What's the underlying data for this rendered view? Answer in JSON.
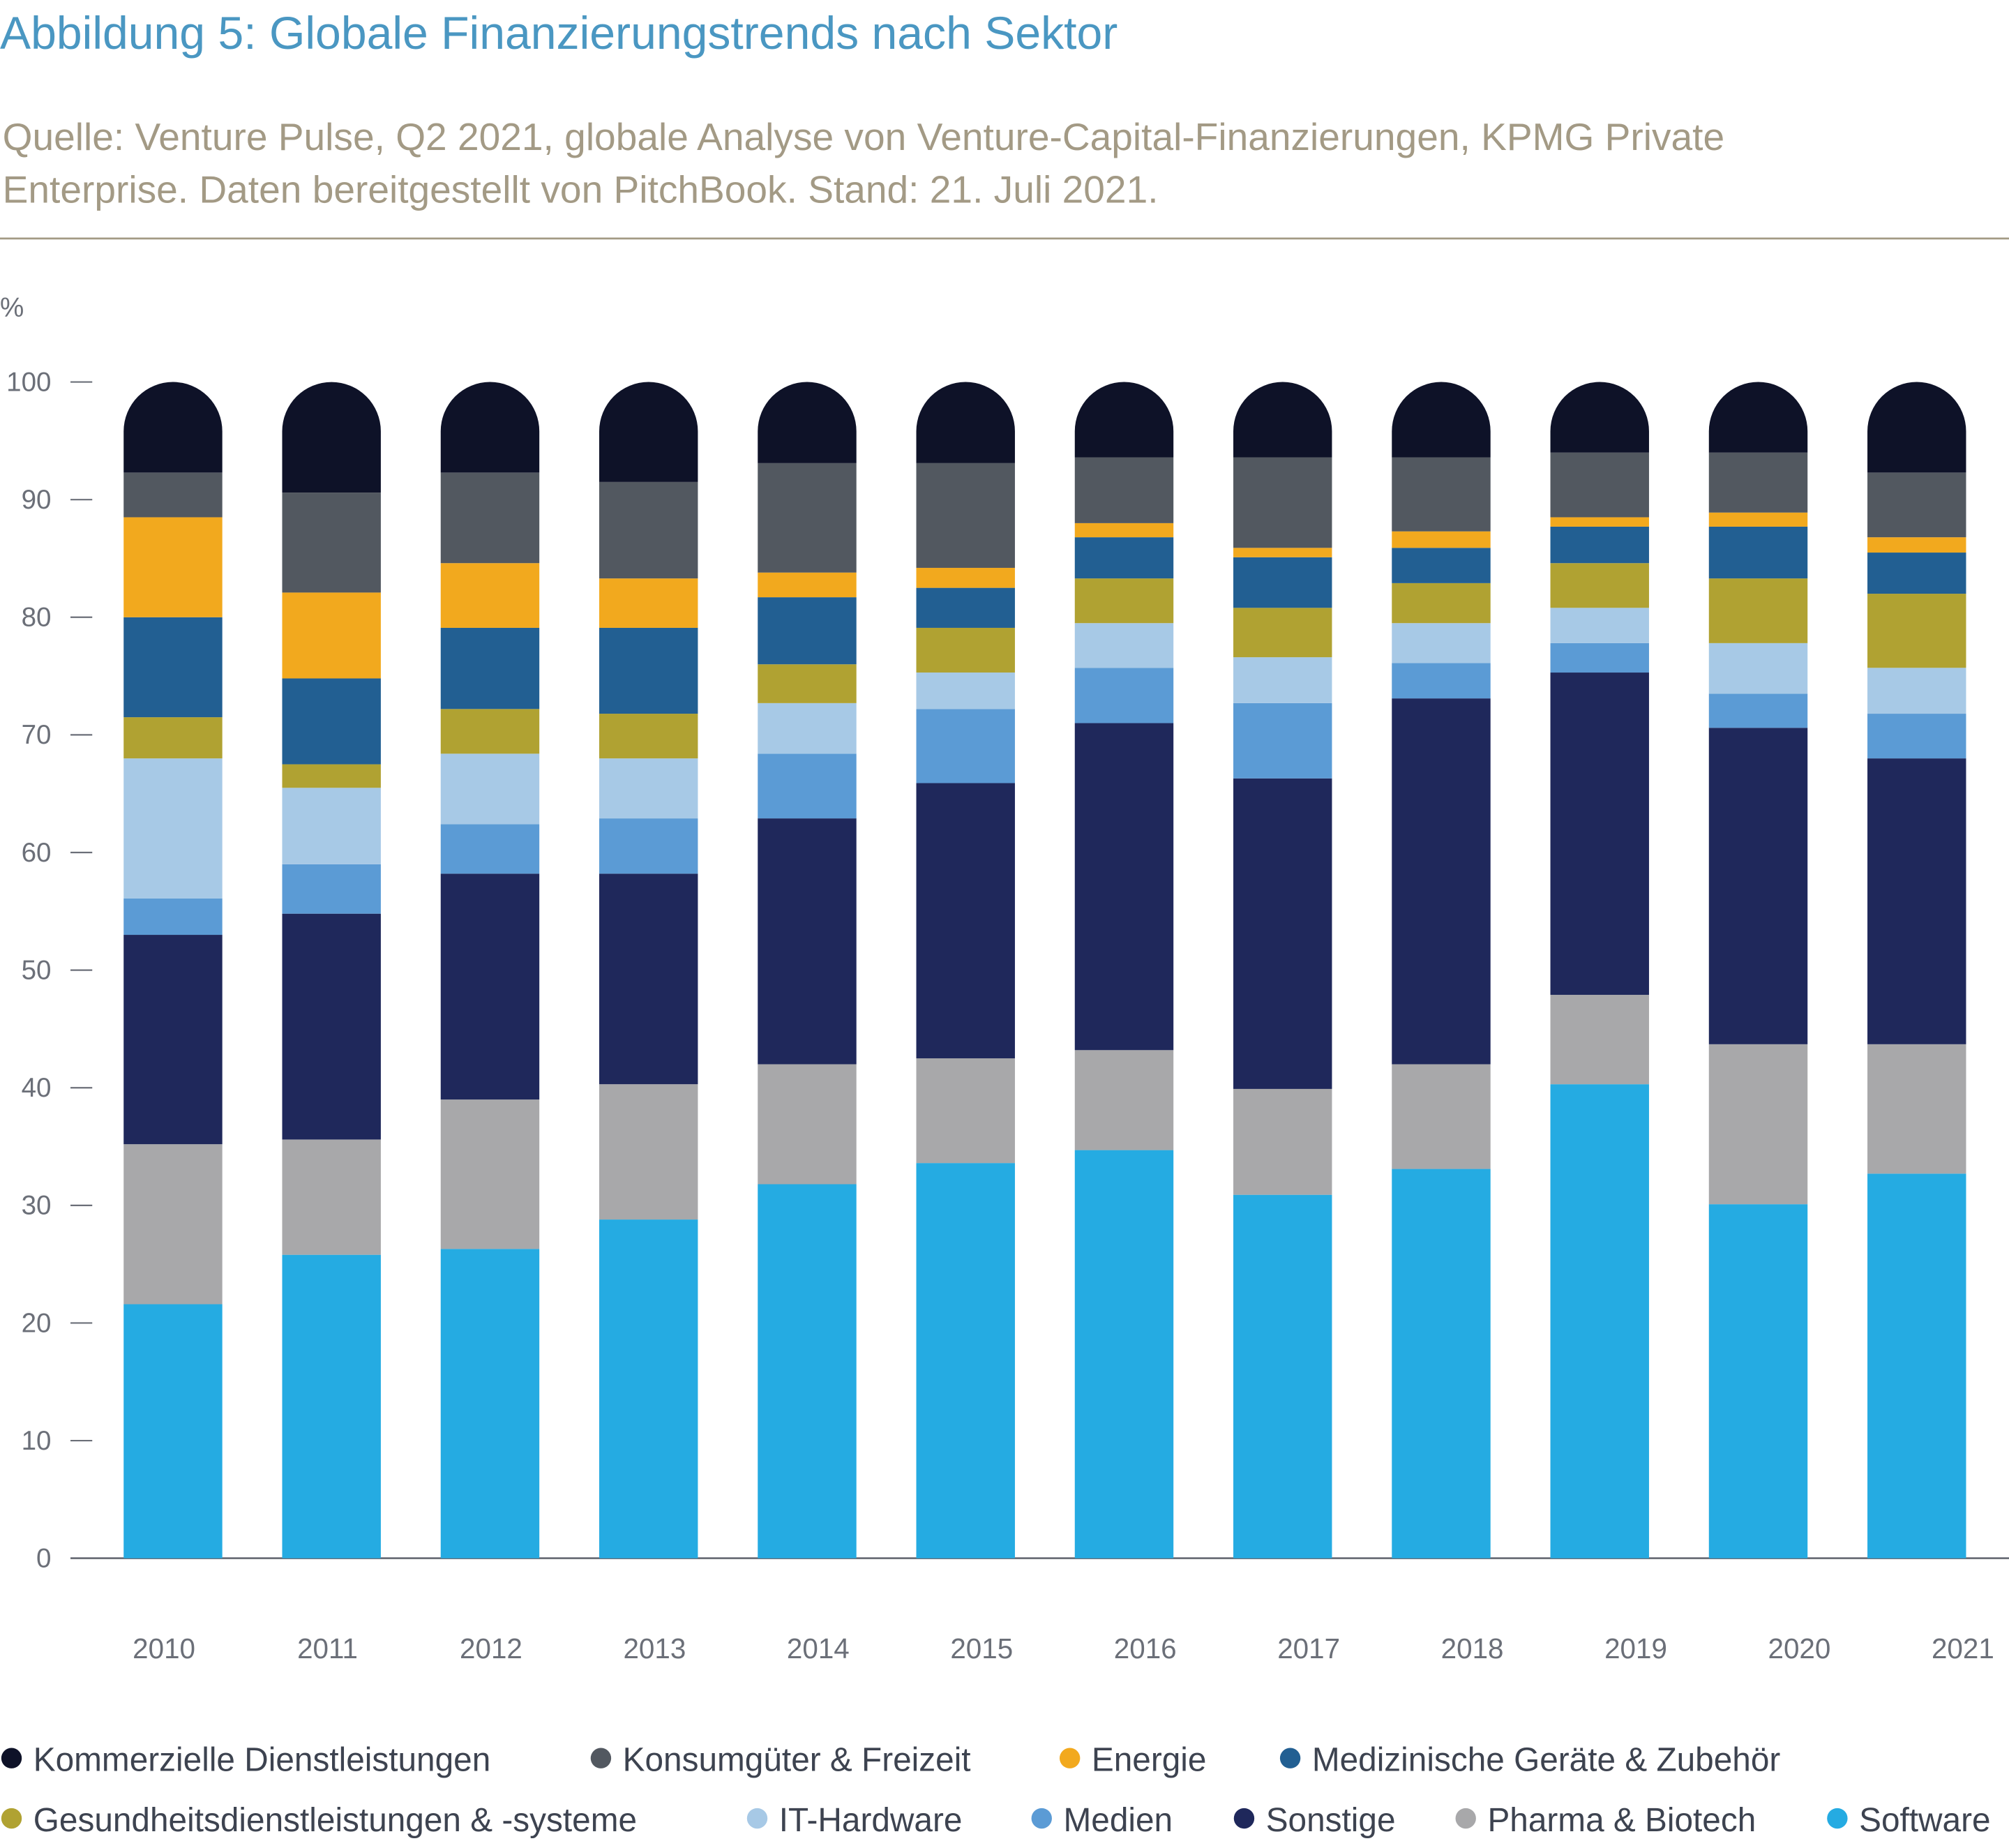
{
  "title": "Abbildung 5: Globale Finanzierungstrends nach Sektor",
  "subtitle_line1": "Quelle: Venture Pulse, Q2 2021, globale Analyse von Venture-Capital-Finanzierungen, KPMG Private",
  "subtitle_line2": "Enterprise. Daten bereitgestellt von PitchBook. Stand: 21. Juli 2021.",
  "chart_data": {
    "type": "bar",
    "stacked": true,
    "title": "Abbildung 5: Globale Finanzierungstrends nach Sektor",
    "ylabel": "%",
    "xlabel": "",
    "ylim": [
      0,
      100
    ],
    "yticks": [
      "0",
      "10",
      "20",
      "30",
      "40",
      "50",
      "60",
      "70",
      "80",
      "90",
      "100"
    ],
    "categories": [
      "2010",
      "2011",
      "2012",
      "2013",
      "2014",
      "2015",
      "2016",
      "2017",
      "2018",
      "2019",
      "2020",
      "2021"
    ],
    "legend_placement": "bottom",
    "series": [
      {
        "name": "Software",
        "color": "#25abe2",
        "values": [
          21.6,
          25.8,
          26.3,
          28.8,
          31.8,
          33.6,
          34.7,
          30.9,
          33.1,
          40.3,
          30.1,
          32.7
        ]
      },
      {
        "name": "Pharma & Biotech",
        "color": "#a8a8aa",
        "values": [
          13.6,
          9.8,
          12.7,
          11.5,
          10.2,
          8.9,
          8.5,
          9.0,
          8.9,
          7.6,
          13.6,
          11.0
        ]
      },
      {
        "name": "Sonstige",
        "color": "#1f285b",
        "values": [
          17.8,
          19.2,
          19.2,
          17.9,
          20.9,
          23.4,
          27.8,
          26.4,
          31.1,
          27.4,
          26.9,
          24.3
        ]
      },
      {
        "name": "Medien",
        "color": "#5b9bd5",
        "values": [
          3.1,
          4.2,
          4.2,
          4.7,
          5.5,
          6.3,
          4.7,
          6.4,
          3.0,
          2.5,
          2.9,
          3.8
        ]
      },
      {
        "name": "IT-Hardware",
        "color": "#a7c9e6",
        "values": [
          11.9,
          6.5,
          6.0,
          5.1,
          4.3,
          3.1,
          3.8,
          3.9,
          3.4,
          3.0,
          4.3,
          3.9
        ]
      },
      {
        "name": "Gesundheitsdienstleistungen & -systeme",
        "color": "#b0a232",
        "values": [
          3.5,
          2.0,
          3.8,
          3.8,
          3.3,
          3.8,
          3.8,
          4.2,
          3.4,
          3.8,
          5.5,
          6.3
        ]
      },
      {
        "name": "Medizinische Geräte & Zubehör",
        "color": "#225f92",
        "values": [
          8.5,
          7.3,
          6.9,
          7.3,
          5.7,
          3.4,
          3.5,
          4.3,
          3.0,
          3.1,
          4.4,
          3.5
        ]
      },
      {
        "name": "Energie",
        "color": "#f2a91e",
        "values": [
          8.5,
          7.3,
          5.5,
          4.2,
          2.1,
          1.7,
          1.2,
          0.8,
          1.4,
          0.8,
          1.2,
          1.3
        ]
      },
      {
        "name": "Konsumgüter & Freizeit",
        "color": "#525860",
        "values": [
          3.8,
          8.5,
          7.7,
          8.2,
          9.3,
          8.9,
          5.6,
          7.7,
          6.3,
          5.5,
          5.1,
          5.5
        ]
      },
      {
        "name": "Kommerzielle Dienstleistungen",
        "color": "#0e1228",
        "values": [
          7.7,
          9.4,
          7.7,
          8.5,
          6.9,
          6.9,
          6.4,
          6.4,
          6.4,
          6.0,
          6.0,
          7.7
        ]
      }
    ],
    "legend": [
      "Kommerzielle Dienstleistungen",
      "Konsumgüter & Freizeit",
      "Energie",
      "Medizinische Geräte & Zubehör",
      "Gesundheitsdienstleistungen & -systeme",
      "IT-Hardware",
      "Medien",
      "Sonstige",
      "Pharma & Biotech",
      "Software"
    ]
  }
}
